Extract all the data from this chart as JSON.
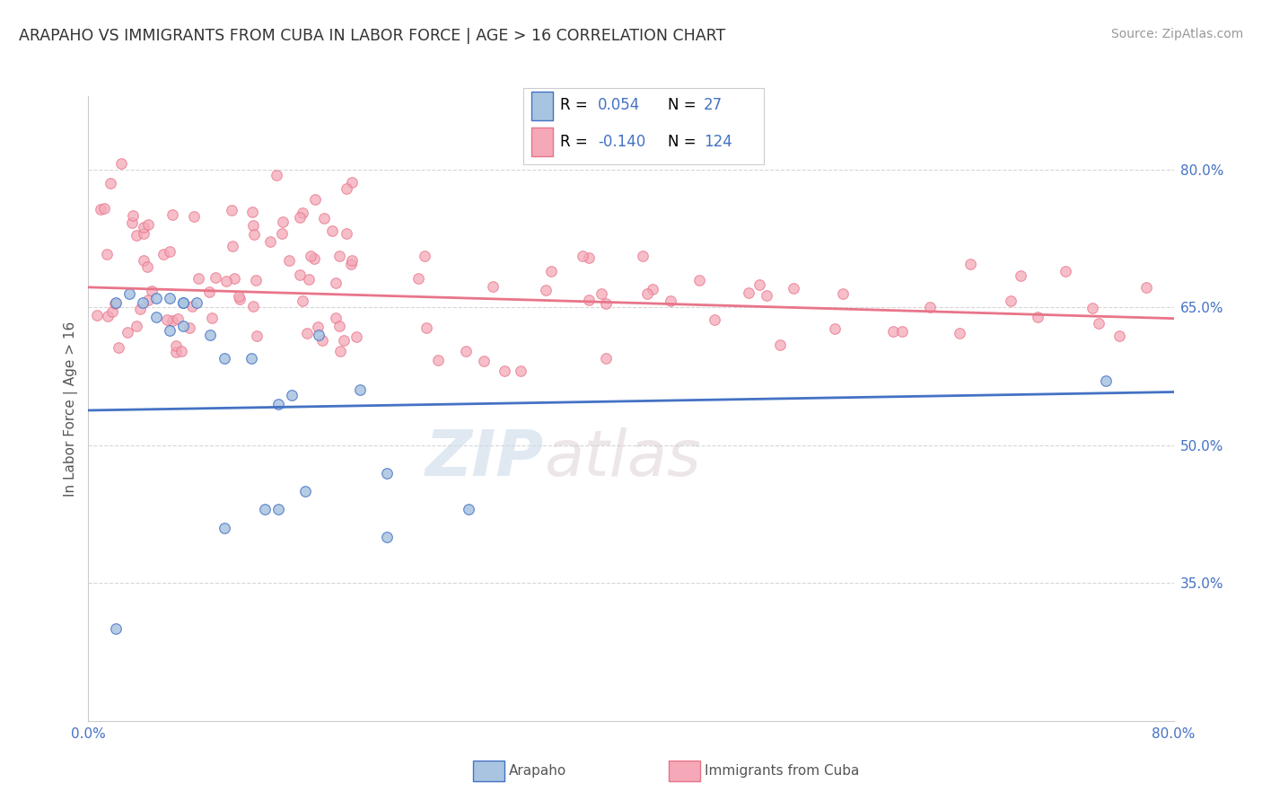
{
  "title": "ARAPAHO VS IMMIGRANTS FROM CUBA IN LABOR FORCE | AGE > 16 CORRELATION CHART",
  "source_text": "Source: ZipAtlas.com",
  "ylabel": "In Labor Force | Age > 16",
  "xlabel_arapaho": "Arapaho",
  "xlabel_cuba": "Immigrants from Cuba",
  "watermark_zip": "ZIP",
  "watermark_atlas": "atlas",
  "xlim": [
    0.0,
    0.8
  ],
  "ylim": [
    0.2,
    0.88
  ],
  "yticks": [
    0.35,
    0.5,
    0.65,
    0.8
  ],
  "ytick_labels": [
    "35.0%",
    "50.0%",
    "65.0%",
    "80.0%"
  ],
  "color_arapaho": "#a8c4e0",
  "color_cuba": "#f4a8b8",
  "line_color_arapaho": "#4472c4",
  "line_color_cuba": "#e8758a",
  "title_color": "#333333",
  "axis_label_color": "#555555",
  "source_color": "#999999",
  "tick_color": "#4472c4",
  "background_color": "#ffffff",
  "grid_color": "#cccccc",
  "legend_r_text": "R = ",
  "legend_n_text": "N = ",
  "legend_r_arapaho_val": "0.054",
  "legend_n_arapaho_val": "27",
  "legend_r_cuba_val": "-0.140",
  "legend_n_cuba_val": "124",
  "arapaho_x": [
    0.02,
    0.03,
    0.04,
    0.05,
    0.05,
    0.06,
    0.06,
    0.07,
    0.07,
    0.08,
    0.09,
    0.1,
    0.12,
    0.14,
    0.15,
    0.17,
    0.2,
    0.22,
    0.07,
    0.1,
    0.13,
    0.16,
    0.22,
    0.28,
    0.75,
    0.14,
    0.02
  ],
  "arapaho_y": [
    0.655,
    0.665,
    0.655,
    0.64,
    0.66,
    0.625,
    0.66,
    0.63,
    0.655,
    0.655,
    0.62,
    0.595,
    0.595,
    0.545,
    0.555,
    0.62,
    0.56,
    0.47,
    0.655,
    0.41,
    0.43,
    0.45,
    0.4,
    0.43,
    0.57,
    0.43,
    0.3
  ],
  "arap_line_y0": 0.538,
  "arap_line_y1": 0.558,
  "cuba_line_y0": 0.672,
  "cuba_line_y1": 0.638
}
